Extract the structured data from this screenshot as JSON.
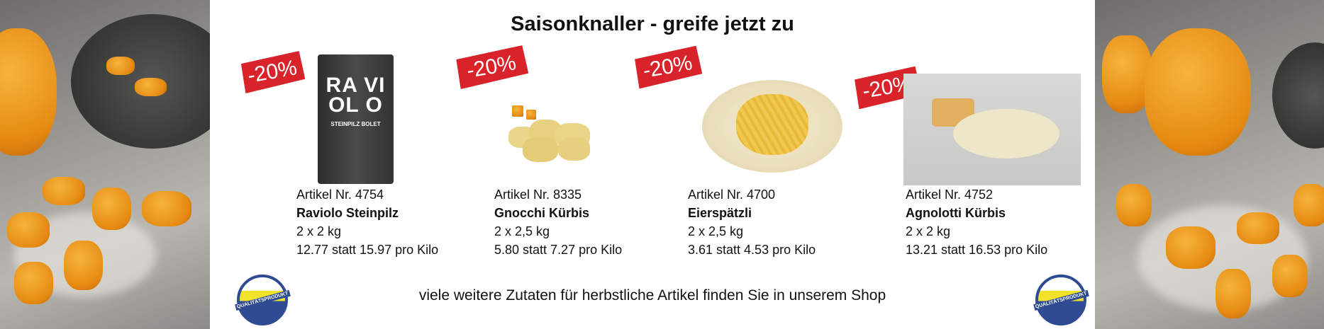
{
  "title": "Saisonknaller - greife jetzt zu",
  "discount_label": "-20%",
  "products": [
    {
      "article": "Artikel Nr. 4754",
      "name": "Raviolo Steinpilz",
      "pack": "2 x 2 kg",
      "price": "12.77 statt 15.97 pro Kilo",
      "package_text": "RA VI OL O",
      "package_sub": "STEINPILZ BOLET"
    },
    {
      "article": "Artikel Nr. 8335",
      "name": "Gnocchi Kürbis",
      "pack": "2 x 2,5 kg",
      "price": "5.80 statt 7.27 pro Kilo"
    },
    {
      "article": "Artikel Nr. 4700",
      "name": "Eierspätzli",
      "pack": "2 x 2,5 kg",
      "price": "3.61 statt 4.53 pro Kilo"
    },
    {
      "article": "Artikel Nr. 4752",
      "name": "Agnolotti Kürbis",
      "pack": "2 x 2 kg",
      "price": "13.21 statt 16.53 pro Kilo"
    }
  ],
  "footer_text": "viele weitere Zutaten für herbstliche Artikel finden Sie in unserem Shop",
  "seal_text": "QUALITÄTSPRODUKT",
  "colors": {
    "badge": "#d8232a",
    "seal_blue": "#2f4b93",
    "seal_yellow": "#f2e22a"
  }
}
